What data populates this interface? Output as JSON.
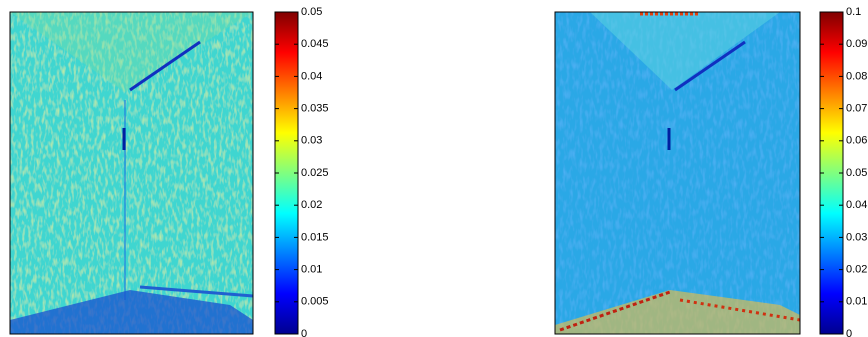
{
  "chart_data": [
    {
      "type": "image",
      "colormap": "jet",
      "clim": [
        0,
        0.05
      ],
      "cticks": [
        0,
        0.005,
        0.01,
        0.015,
        0.02,
        0.025,
        0.03,
        0.035,
        0.04,
        0.045,
        0.05
      ]
    },
    {
      "type": "image",
      "colormap": "jet",
      "clim": [
        0,
        0.1
      ],
      "cticks": [
        0,
        0.01,
        0.02,
        0.03,
        0.04,
        0.05,
        0.06,
        0.07,
        0.08,
        0.09,
        0.1
      ]
    }
  ]
}
